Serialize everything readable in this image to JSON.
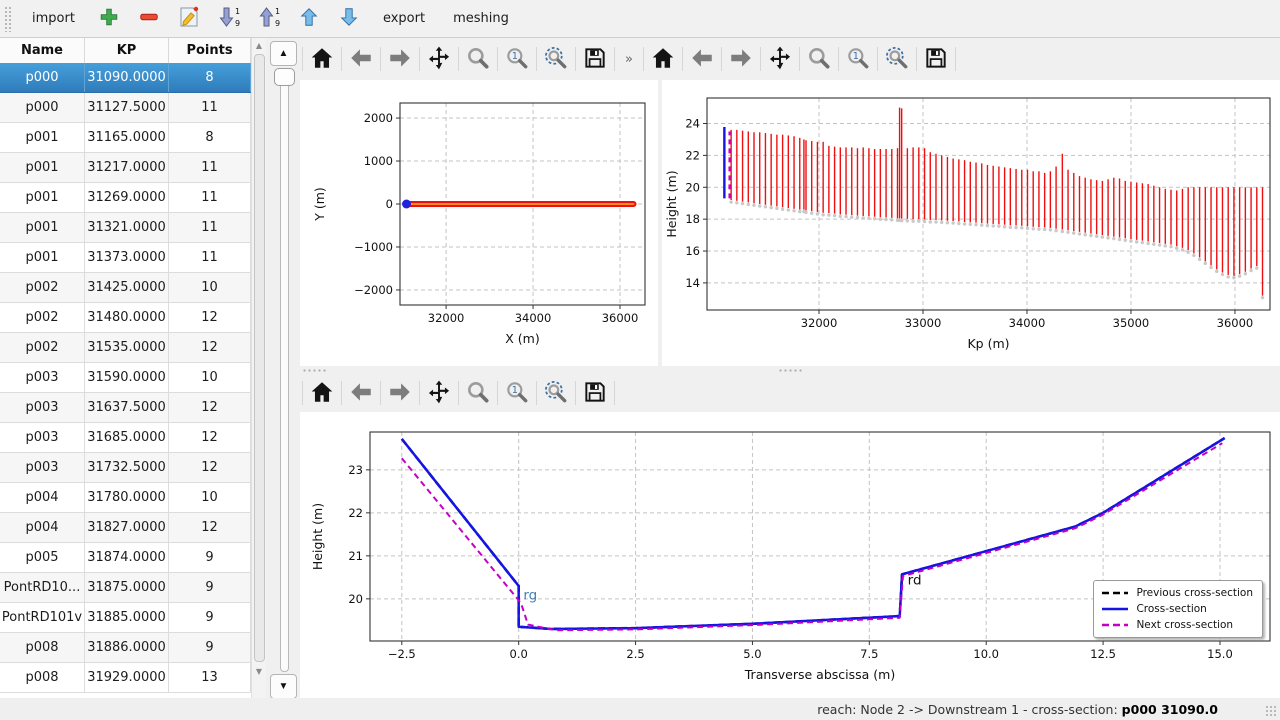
{
  "app_toolbar": {
    "import_label": "import",
    "export_label": "export",
    "meshing_label": "meshing"
  },
  "plot_toolbar": {
    "overflow_label": "»",
    "icons": [
      "home",
      "back",
      "forward",
      "pan",
      "zoom",
      "zoom-region",
      "zoom-fit",
      "save"
    ]
  },
  "table": {
    "columns": [
      "Name",
      "KP",
      "Points"
    ],
    "selected_index": 0,
    "rows": [
      [
        "p000",
        "31090.0000",
        "8"
      ],
      [
        "p000",
        "31127.5000",
        "11"
      ],
      [
        "p001",
        "31165.0000",
        "8"
      ],
      [
        "p001",
        "31217.0000",
        "11"
      ],
      [
        "p001",
        "31269.0000",
        "11"
      ],
      [
        "p001",
        "31321.0000",
        "11"
      ],
      [
        "p001",
        "31373.0000",
        "11"
      ],
      [
        "p002",
        "31425.0000",
        "10"
      ],
      [
        "p002",
        "31480.0000",
        "12"
      ],
      [
        "p002",
        "31535.0000",
        "12"
      ],
      [
        "p003",
        "31590.0000",
        "10"
      ],
      [
        "p003",
        "31637.5000",
        "12"
      ],
      [
        "p003",
        "31685.0000",
        "12"
      ],
      [
        "p003",
        "31732.5000",
        "12"
      ],
      [
        "p004",
        "31780.0000",
        "10"
      ],
      [
        "p004",
        "31827.0000",
        "12"
      ],
      [
        "p005",
        "31874.0000",
        "9"
      ],
      [
        "PontRD10...",
        "31875.0000",
        "9"
      ],
      [
        "PontRD101v",
        "31885.0000",
        "9"
      ],
      [
        "p008",
        "31886.0000",
        "9"
      ],
      [
        "p008",
        "31929.0000",
        "13"
      ]
    ]
  },
  "status_bar": {
    "prefix": "reach: Node 2 -> Downstream 1 - cross-section:",
    "highlight": "p000 31090.0"
  },
  "colors": {
    "selection_blue": "#3b8ccb",
    "plot_red": "#ee1010",
    "plot_orange": "#ff8c1a",
    "plot_blue": "#1414e6",
    "plot_magenta": "#c400c4",
    "grid_gray": "#c3c3c3"
  },
  "chart_data": [
    {
      "type": "line",
      "name": "plan-view",
      "xlabel": "X (m)",
      "ylabel": "Y (m)",
      "xlim": [
        30940,
        36575
      ],
      "ylim": [
        -2350,
        2350
      ],
      "xticks": [
        32000,
        34000,
        36000
      ],
      "xtick_labels": [
        "32000",
        "34000",
        "36000"
      ],
      "yticks": [
        -2000,
        -1000,
        0,
        1000,
        2000
      ],
      "ytick_labels": [
        "−2000",
        "−1000",
        "0",
        "1000",
        "2000"
      ],
      "grid": true,
      "series": [
        {
          "name": "cross-sections-band",
          "style": "thick",
          "color": "#ee1010",
          "width": 6,
          "points": [
            [
              31120,
              0
            ],
            [
              36310,
              0
            ]
          ]
        },
        {
          "name": "reach-axis",
          "style": "line",
          "color": "#ff8c1a",
          "width": 2,
          "points": [
            [
              31120,
              0
            ],
            [
              36310,
              0
            ]
          ]
        },
        {
          "name": "selected-section-point",
          "style": "scatter",
          "color": "#2222dd",
          "size": 4.5,
          "points": [
            [
              31090,
              0
            ]
          ]
        }
      ]
    },
    {
      "type": "line",
      "name": "longitudinal-profile",
      "xlabel": "Kp (m)",
      "ylabel": "Height (m)",
      "xlim": [
        30923,
        36337
      ],
      "ylim": [
        12.3,
        25.6
      ],
      "xticks": [
        32000,
        33000,
        34000,
        35000,
        36000
      ],
      "xtick_labels": [
        "32000",
        "33000",
        "34000",
        "35000",
        "36000"
      ],
      "yticks": [
        14,
        16,
        18,
        20,
        22,
        24
      ],
      "ytick_labels": [
        "14",
        "16",
        "18",
        "20",
        "22",
        "24"
      ],
      "grid": true,
      "sections": [
        [
          31155,
          19.2,
          23.6
        ],
        [
          31210,
          19.15,
          23.6
        ],
        [
          31265,
          19.1,
          23.55
        ],
        [
          31320,
          19.05,
          23.5
        ],
        [
          31375,
          19.0,
          23.45
        ],
        [
          31430,
          18.95,
          23.45
        ],
        [
          31485,
          18.9,
          23.4
        ],
        [
          31540,
          18.85,
          23.35
        ],
        [
          31595,
          18.8,
          23.3
        ],
        [
          31650,
          18.75,
          23.3
        ],
        [
          31705,
          18.7,
          23.25
        ],
        [
          31760,
          18.65,
          23.2
        ],
        [
          31815,
          18.6,
          23.1
        ],
        [
          31855,
          18.6,
          23.0
        ],
        [
          31875,
          18.55,
          22.95
        ],
        [
          31930,
          18.5,
          22.9
        ],
        [
          31985,
          18.45,
          22.85
        ],
        [
          32040,
          18.4,
          22.85
        ],
        [
          32095,
          18.38,
          22.6
        ],
        [
          32150,
          18.35,
          22.55
        ],
        [
          32205,
          18.3,
          22.5
        ],
        [
          32260,
          18.28,
          22.5
        ],
        [
          32315,
          18.25,
          22.5
        ],
        [
          32370,
          18.22,
          22.45
        ],
        [
          32425,
          18.2,
          22.5
        ],
        [
          32480,
          18.18,
          22.45
        ],
        [
          32535,
          18.15,
          22.4
        ],
        [
          32590,
          18.12,
          22.4
        ],
        [
          32645,
          18.1,
          22.4
        ],
        [
          32700,
          18.08,
          22.4
        ],
        [
          32755,
          18.05,
          22.45
        ],
        [
          32775,
          18.05,
          25.0
        ],
        [
          32795,
          18.03,
          24.95
        ],
        [
          32850,
          18.02,
          22.45
        ],
        [
          32905,
          18.0,
          22.5
        ],
        [
          32960,
          18.0,
          22.5
        ],
        [
          33015,
          17.98,
          22.45
        ],
        [
          33070,
          17.95,
          22.2
        ],
        [
          33125,
          17.95,
          22.1
        ],
        [
          33180,
          17.92,
          22.0
        ],
        [
          33235,
          17.9,
          21.9
        ],
        [
          33290,
          17.88,
          21.8
        ],
        [
          33345,
          17.85,
          21.75
        ],
        [
          33400,
          17.82,
          21.7
        ],
        [
          33455,
          17.8,
          21.6
        ],
        [
          33510,
          17.78,
          21.55
        ],
        [
          33565,
          17.75,
          21.5
        ],
        [
          33620,
          17.72,
          21.4
        ],
        [
          33675,
          17.7,
          21.35
        ],
        [
          33730,
          17.68,
          21.3
        ],
        [
          33785,
          17.65,
          21.25
        ],
        [
          33840,
          17.62,
          21.2
        ],
        [
          33895,
          17.6,
          21.15
        ],
        [
          33950,
          17.58,
          21.1
        ],
        [
          34005,
          17.55,
          21.1
        ],
        [
          34060,
          17.52,
          21.0
        ],
        [
          34115,
          17.5,
          21.0
        ],
        [
          34170,
          17.48,
          20.9
        ],
        [
          34225,
          17.45,
          21.0
        ],
        [
          34280,
          17.4,
          21.3
        ],
        [
          34340,
          17.35,
          22.1
        ],
        [
          34395,
          17.3,
          21.1
        ],
        [
          34450,
          17.25,
          20.9
        ],
        [
          34505,
          17.2,
          20.7
        ],
        [
          34560,
          17.15,
          20.6
        ],
        [
          34615,
          17.1,
          20.5
        ],
        [
          34670,
          17.05,
          20.45
        ],
        [
          34725,
          17.0,
          20.4
        ],
        [
          34780,
          16.95,
          20.5
        ],
        [
          34835,
          16.9,
          20.6
        ],
        [
          34890,
          16.85,
          20.55
        ],
        [
          34945,
          16.8,
          20.4
        ],
        [
          35000,
          16.75,
          20.35
        ],
        [
          35055,
          16.7,
          20.3
        ],
        [
          35110,
          16.65,
          20.25
        ],
        [
          35165,
          16.6,
          20.2
        ],
        [
          35220,
          16.55,
          20.1
        ],
        [
          35275,
          16.5,
          20.0
        ],
        [
          35330,
          16.45,
          19.9
        ],
        [
          35385,
          16.4,
          19.85
        ],
        [
          35440,
          16.3,
          19.8
        ],
        [
          35495,
          16.2,
          19.9
        ],
        [
          35550,
          16.05,
          20.0
        ],
        [
          35605,
          15.85,
          20.0
        ],
        [
          35660,
          15.6,
          20.0
        ],
        [
          35715,
          15.35,
          20.0
        ],
        [
          35770,
          15.1,
          20.0
        ],
        [
          35825,
          14.85,
          20.0
        ],
        [
          35880,
          14.65,
          20.0
        ],
        [
          35935,
          14.5,
          20.0
        ],
        [
          35990,
          14.45,
          20.0
        ],
        [
          36045,
          14.55,
          20.0
        ],
        [
          36100,
          14.7,
          20.0
        ],
        [
          36155,
          14.9,
          20.0
        ],
        [
          36210,
          15.05,
          20.0
        ],
        [
          36265,
          13.2,
          20.0
        ]
      ],
      "selected_section": {
        "kp": 31090,
        "bottom": 19.3,
        "top": 23.78,
        "color": "#1414e6"
      },
      "next_section": {
        "kp": 31140,
        "bottom": 19.3,
        "top": 23.5,
        "color": "#c400c4",
        "dash": true
      }
    },
    {
      "type": "line",
      "name": "cross-section-view",
      "xlabel": "Transverse abscissa (m)",
      "ylabel": "Height (m)",
      "xlim": [
        -3.18,
        16.07
      ],
      "ylim": [
        19.02,
        23.88
      ],
      "xticks": [
        -2.5,
        0,
        2.5,
        5,
        7.5,
        10,
        12.5,
        15
      ],
      "xtick_labels": [
        "−2.5",
        "0.0",
        "2.5",
        "5.0",
        "7.5",
        "10.0",
        "12.5",
        "15.0"
      ],
      "yticks": [
        20,
        21,
        22,
        23
      ],
      "ytick_labels": [
        "20",
        "21",
        "22",
        "23"
      ],
      "grid": true,
      "legend_position": "lower right",
      "series": [
        {
          "name": "previous-cross-section",
          "label": "Previous cross-section",
          "color": "#000000",
          "dash": "7 4",
          "width": 2.5,
          "points": [
            [
              -2.5,
              23.72
            ],
            [
              0,
              20.3
            ],
            [
              0,
              19.35
            ],
            [
              0.7,
              19.3
            ],
            [
              2.5,
              19.32
            ],
            [
              5,
              19.42
            ],
            [
              8.15,
              19.6
            ],
            [
              8.2,
              20.57
            ],
            [
              11.9,
              21.68
            ],
            [
              12.5,
              22.0
            ],
            [
              15.1,
              23.74
            ]
          ]
        },
        {
          "name": "cross-section",
          "label": "Cross-section",
          "color": "#1414e6",
          "dash": "",
          "width": 2.5,
          "points": [
            [
              -2.5,
              23.72
            ],
            [
              0,
              20.3
            ],
            [
              0,
              19.35
            ],
            [
              0.7,
              19.3
            ],
            [
              2.5,
              19.32
            ],
            [
              5,
              19.42
            ],
            [
              8.15,
              19.6
            ],
            [
              8.2,
              20.57
            ],
            [
              11.9,
              21.68
            ],
            [
              12.5,
              22.0
            ],
            [
              15.1,
              23.74
            ]
          ]
        },
        {
          "name": "next-cross-section",
          "label": "Next cross-section",
          "color": "#c400c4",
          "dash": "6 4",
          "width": 2,
          "points": [
            [
              -2.5,
              23.27
            ],
            [
              0.05,
              19.9
            ],
            [
              0.2,
              19.4
            ],
            [
              0.8,
              19.27
            ],
            [
              2.5,
              19.29
            ],
            [
              5,
              19.39
            ],
            [
              8.15,
              19.56
            ],
            [
              8.22,
              20.53
            ],
            [
              11.9,
              21.64
            ],
            [
              12.5,
              21.96
            ],
            [
              15.05,
              23.62
            ]
          ]
        }
      ],
      "annotations": [
        {
          "text": "rg",
          "x": 0.1,
          "y": 19.98,
          "color": "#4080b8"
        },
        {
          "text": "rd",
          "x": 8.32,
          "y": 20.33,
          "color": "#111111"
        }
      ]
    }
  ]
}
